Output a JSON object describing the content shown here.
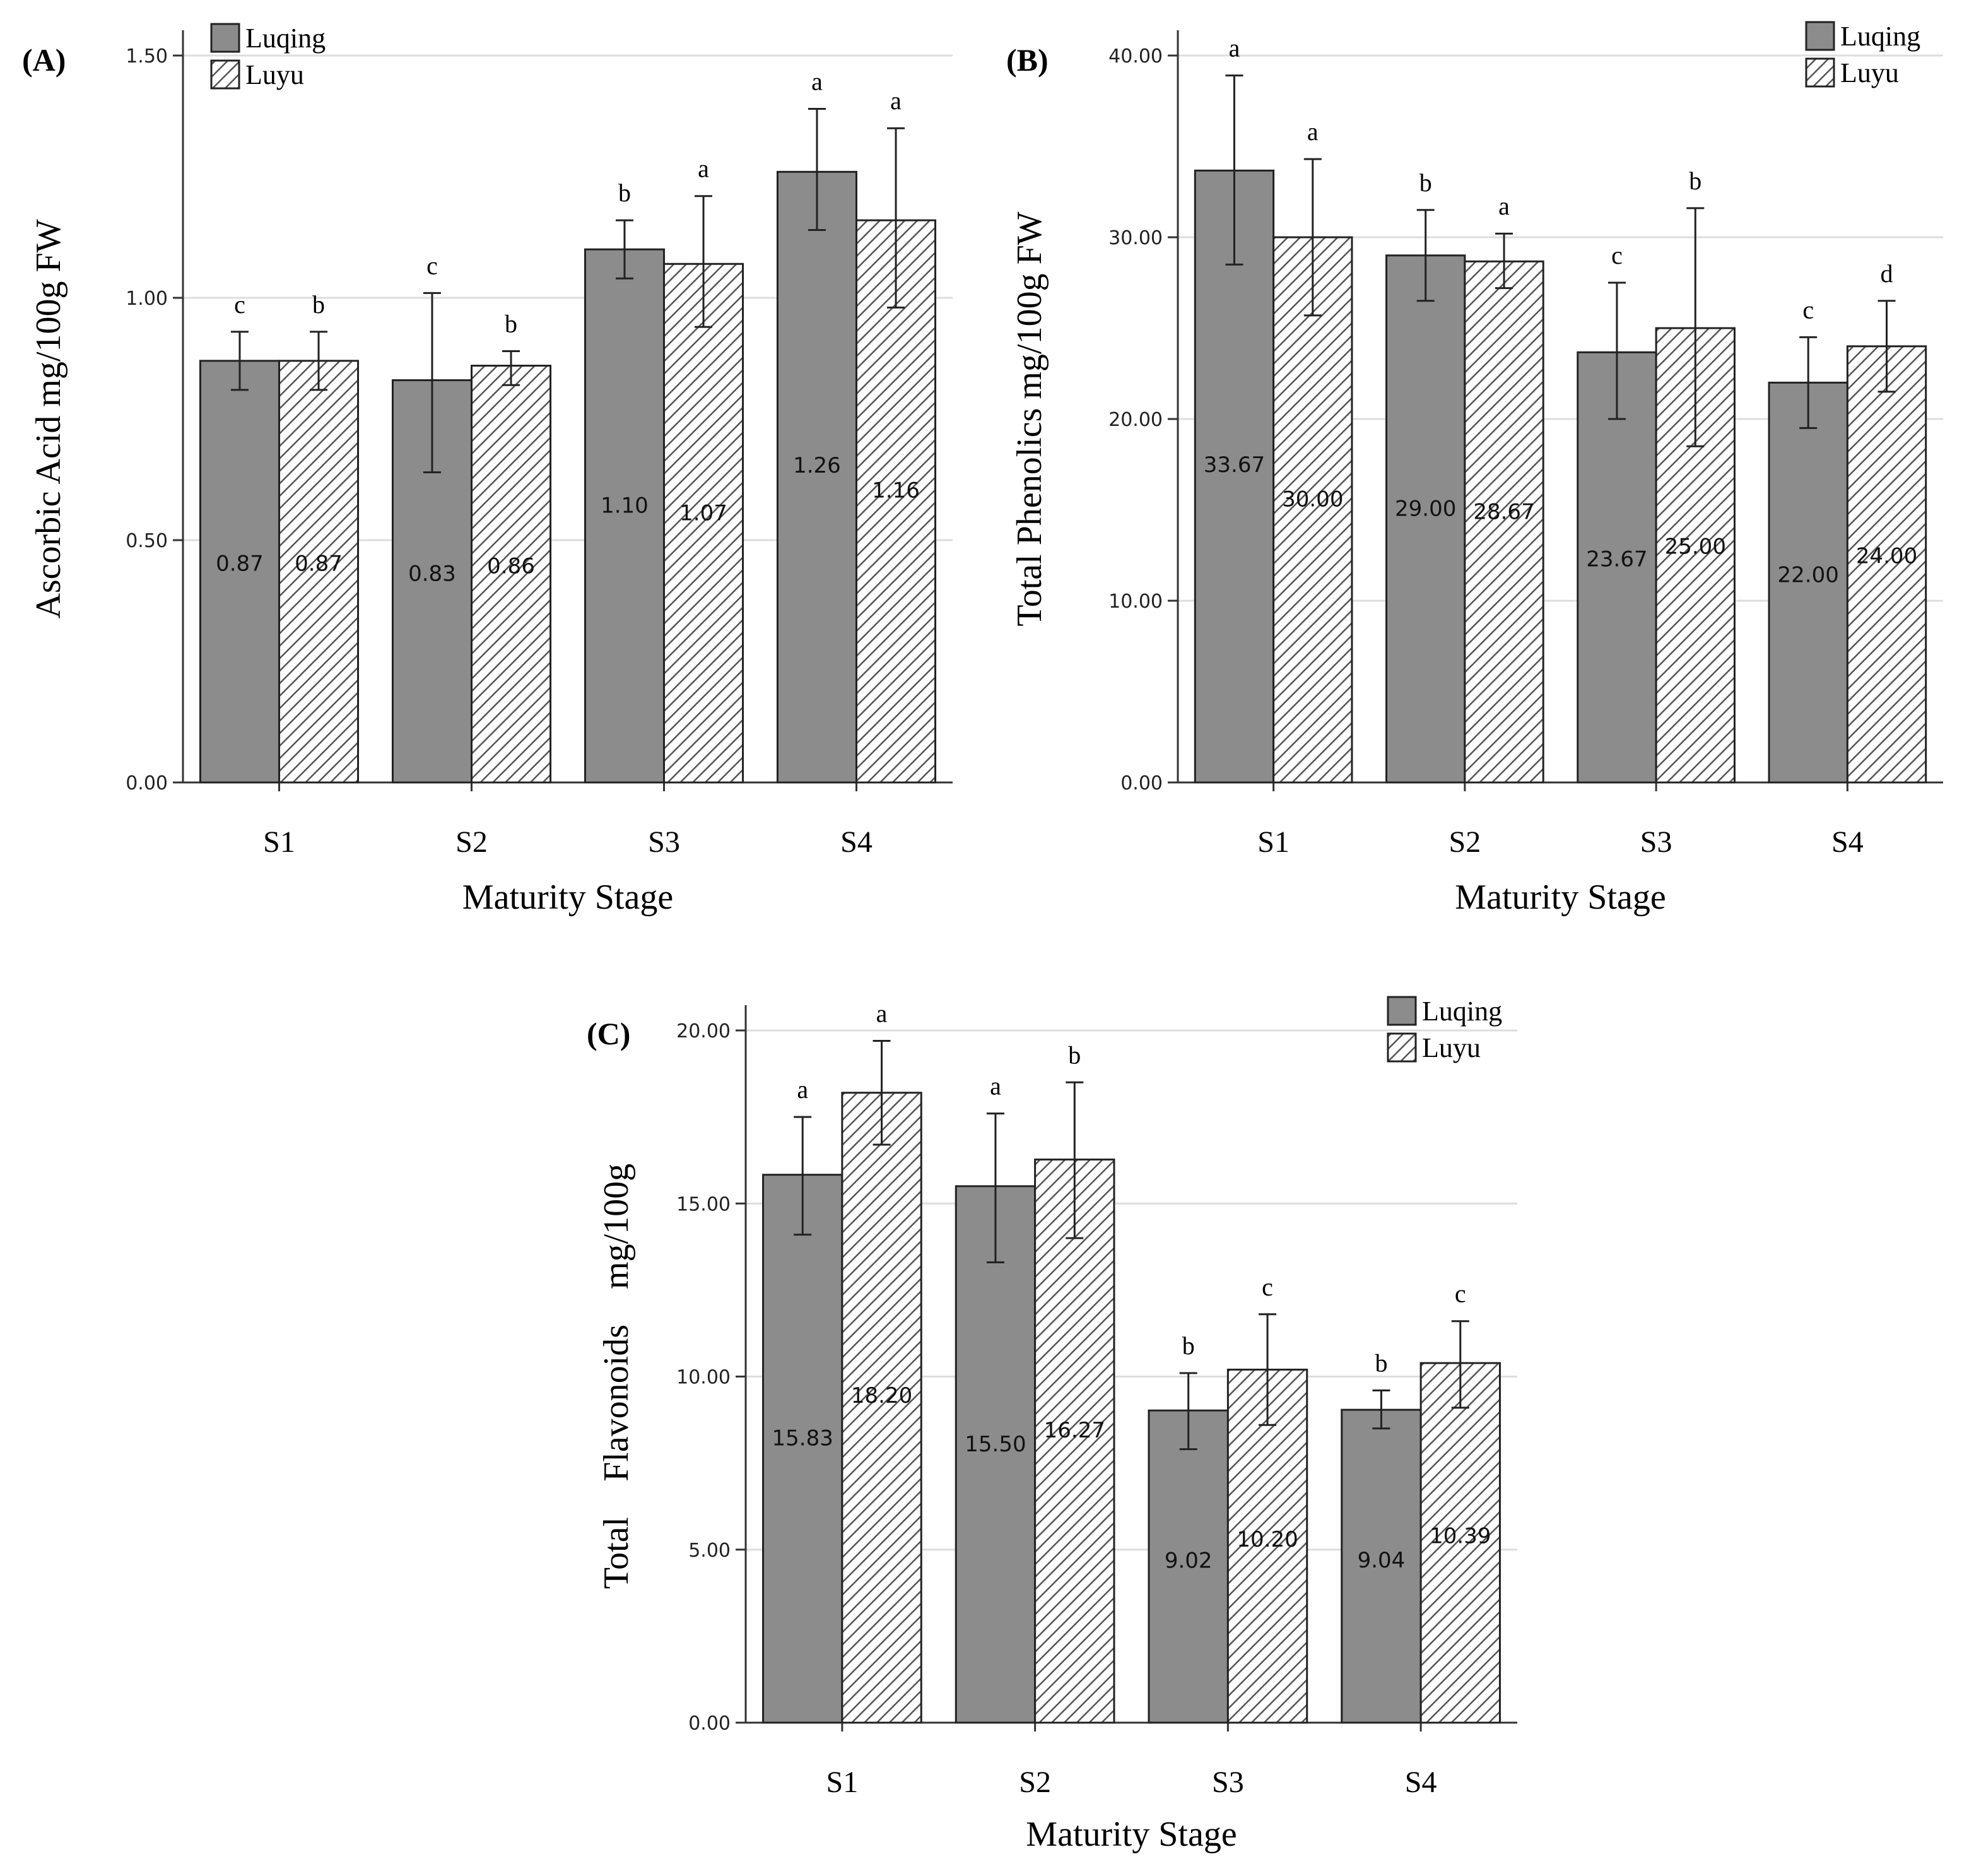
{
  "colors": {
    "solid": "#8c8c8c",
    "hatch_bg": "#ffffff",
    "hatch_line": "#555555",
    "grid": "#dddddd",
    "axis": "#333333"
  },
  "chart_data": [
    {
      "panel": "(A)",
      "type": "bar",
      "categories": [
        "S1",
        "S2",
        "S3",
        "S4"
      ],
      "xlabel": "Maturity Stage",
      "ylabel": "Ascorbic Acid mg/100g FW",
      "ylim": [
        0,
        1.5
      ],
      "yticks": [
        0,
        0.5,
        1.0,
        1.5
      ],
      "ytick_labels": [
        "0.00",
        "0.50",
        "1.00",
        "1.50"
      ],
      "legend": [
        "Luqing",
        "Luyu"
      ],
      "series": [
        {
          "name": "Luqing",
          "values": [
            0.87,
            0.83,
            1.1,
            1.26
          ],
          "value_labels": [
            "0.87",
            "0.83",
            "1.10",
            "1.26"
          ],
          "err_low": [
            0.81,
            0.64,
            1.04,
            1.14
          ],
          "err_high": [
            0.93,
            1.01,
            1.16,
            1.39
          ],
          "letters": [
            "c",
            "c",
            "b",
            "a"
          ]
        },
        {
          "name": "Luyu",
          "values": [
            0.87,
            0.86,
            1.07,
            1.16
          ],
          "value_labels": [
            "0.87",
            "0.86",
            "1.07",
            "1.16"
          ],
          "err_low": [
            0.81,
            0.82,
            0.94,
            0.98
          ],
          "err_high": [
            0.93,
            0.89,
            1.21,
            1.35
          ],
          "letters": [
            "b",
            "b",
            "a",
            "a"
          ]
        }
      ]
    },
    {
      "panel": "(B)",
      "type": "bar",
      "categories": [
        "S1",
        "S2",
        "S3",
        "S4"
      ],
      "xlabel": "Maturity Stage",
      "ylabel": "Total Phenolics mg/100g FW",
      "ylim": [
        0,
        40
      ],
      "yticks": [
        0,
        10,
        20,
        30,
        40
      ],
      "ytick_labels": [
        "0.00",
        "10.00",
        "20.00",
        "30.00",
        "40.00"
      ],
      "legend": [
        "Luqing",
        "Luyu"
      ],
      "series": [
        {
          "name": "Luqing",
          "values": [
            33.67,
            29.0,
            23.67,
            22.0
          ],
          "value_labels": [
            "33.67",
            "29.00",
            "23.67",
            "22.00"
          ],
          "err_low": [
            28.5,
            26.5,
            20.0,
            19.5
          ],
          "err_high": [
            38.9,
            31.5,
            27.5,
            24.5
          ],
          "letters": [
            "a",
            "b",
            "c",
            "c"
          ]
        },
        {
          "name": "Luyu",
          "values": [
            30.0,
            28.67,
            25.0,
            24.0
          ],
          "value_labels": [
            "30.00",
            "28.67",
            "25.00",
            "24.00"
          ],
          "err_low": [
            25.7,
            27.2,
            18.5,
            21.5
          ],
          "err_high": [
            34.3,
            30.2,
            31.6,
            26.5
          ],
          "letters": [
            "a",
            "a",
            "b",
            "d"
          ]
        }
      ]
    },
    {
      "panel": "(C)",
      "type": "bar",
      "categories": [
        "S1",
        "S2",
        "S3",
        "S4"
      ],
      "xlabel": "Maturity Stage",
      "ylabel": "Total    Flavonoids    mg/100g",
      "ylim": [
        0,
        20
      ],
      "yticks": [
        0,
        5,
        10,
        15,
        20
      ],
      "ytick_labels": [
        "0.00",
        "5.00",
        "10.00",
        "15.00",
        "20.00"
      ],
      "legend": [
        "Luqing",
        "Luyu"
      ],
      "series": [
        {
          "name": "Luqing",
          "values": [
            15.83,
            15.5,
            9.02,
            9.04
          ],
          "value_labels": [
            "15.83",
            "15.50",
            "9.02",
            "9.04"
          ],
          "err_low": [
            14.1,
            13.3,
            7.9,
            8.5
          ],
          "err_high": [
            17.5,
            17.6,
            10.1,
            9.6
          ],
          "letters": [
            "a",
            "a",
            "b",
            "b"
          ]
        },
        {
          "name": "Luyu",
          "values": [
            18.2,
            16.27,
            10.2,
            10.39
          ],
          "value_labels": [
            "18.20",
            "16.27",
            "10.20",
            "10.39"
          ],
          "err_low": [
            16.7,
            14.0,
            8.6,
            9.1
          ],
          "err_high": [
            19.7,
            18.5,
            11.8,
            11.6
          ],
          "letters": [
            "a",
            "b",
            "c",
            "c"
          ]
        }
      ]
    }
  ]
}
